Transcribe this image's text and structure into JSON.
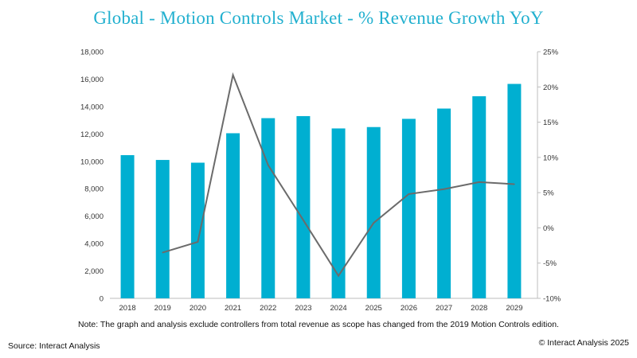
{
  "title": "Global - Motion Controls Market - % Revenue Growth YoY",
  "note": "Note: The graph and analysis exclude controllers from total revenue as scope has changed from the 2019 Motion Controls edition.",
  "source": "Source: Interact Analysis",
  "copyright": "© Interact Analysis 2025",
  "colors": {
    "bars": "#00afd1",
    "line": "#6b6b6b",
    "title": "#22b0cf"
  },
  "chart_data": {
    "type": "bar",
    "title": "Global - Motion Controls Market - % Revenue Growth YoY",
    "categories": [
      "2018",
      "2019",
      "2020",
      "2021",
      "2022",
      "2023",
      "2024",
      "2025",
      "2026",
      "2027",
      "2028",
      "2029"
    ],
    "series": [
      {
        "type": "bar",
        "axis": "left",
        "values": [
          10450,
          10100,
          9900,
          12050,
          13150,
          13300,
          12400,
          12500,
          13100,
          13850,
          14750,
          15650
        ]
      },
      {
        "type": "line",
        "axis": "right",
        "values": [
          null,
          -3.5,
          -2.0,
          21.7,
          8.9,
          1.1,
          -6.8,
          0.7,
          4.8,
          5.5,
          6.5,
          6.2
        ]
      }
    ],
    "yaxis_left": {
      "ylim": [
        0,
        18000
      ],
      "ticks": [
        "0",
        "2,000",
        "4,000",
        "6,000",
        "8,000",
        "10,000",
        "12,000",
        "14,000",
        "16,000",
        "18,000"
      ]
    },
    "yaxis_right": {
      "ylim": [
        -10,
        25
      ],
      "ticks": [
        "-10%",
        "-5%",
        "0%",
        "5%",
        "10%",
        "15%",
        "20%",
        "25%"
      ]
    },
    "grid": false,
    "legend": "none"
  }
}
